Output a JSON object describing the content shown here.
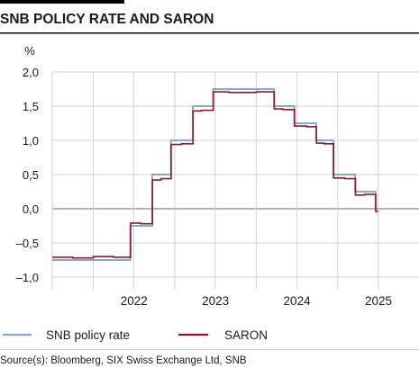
{
  "chart_data": {
    "type": "line",
    "title": "SNB POLICY RATE AND SARON",
    "ylabel": "%",
    "source": "Source(s): Bloomberg, SIX Swiss Exchange Ltd, SNB",
    "x_tick_labels": [
      "2022",
      "2023",
      "2024",
      "2025"
    ],
    "y_ticks": [
      2.0,
      1.5,
      1.0,
      0.5,
      0.0,
      -0.5,
      -1.0
    ],
    "y_tick_labels": [
      "2,0",
      "1,5",
      "1,0",
      "0,5",
      "0,0",
      "–0,5",
      "–1,0"
    ],
    "xlim": [
      "2021-07-01",
      "2025-12-31"
    ],
    "ylim": [
      -1.15,
      2.1
    ],
    "grid": true,
    "legend_position": "bottom",
    "colors": {
      "policy_rate": "#88a9cc",
      "saron": "#8c1a2c",
      "grid": "#d2d2d2",
      "zero_line": "#888888",
      "title_rule": "#000000"
    },
    "series": [
      {
        "name": "SNB policy rate",
        "step": true,
        "x": [
          "2021-07-01",
          "2022-06-16",
          "2022-09-22",
          "2022-12-15",
          "2023-03-23",
          "2023-06-22",
          "2024-03-21",
          "2024-06-20",
          "2024-09-26",
          "2024-12-12",
          "2025-03-20",
          "2025-06-19",
          "2025-07-01"
        ],
        "values": [
          -0.75,
          -0.25,
          0.5,
          1.0,
          1.5,
          1.75,
          1.5,
          1.25,
          1.0,
          0.5,
          0.25,
          0.0,
          0.0
        ]
      },
      {
        "name": "SARON",
        "step": true,
        "x": [
          "2021-07-01",
          "2021-10-01",
          "2022-01-01",
          "2022-04-01",
          "2022-06-17",
          "2022-08-01",
          "2022-09-23",
          "2022-11-01",
          "2022-12-16",
          "2023-02-01",
          "2023-03-24",
          "2023-05-01",
          "2023-06-23",
          "2023-09-01",
          "2024-01-01",
          "2024-03-22",
          "2024-05-01",
          "2024-06-21",
          "2024-08-15",
          "2024-09-27",
          "2024-11-01",
          "2024-12-13",
          "2025-02-01",
          "2025-03-21",
          "2025-05-01",
          "2025-06-20",
          "2025-07-01"
        ],
        "values": [
          -0.71,
          -0.72,
          -0.7,
          -0.71,
          -0.21,
          -0.22,
          0.42,
          0.44,
          0.94,
          0.95,
          1.43,
          1.44,
          1.71,
          1.7,
          1.71,
          1.46,
          1.45,
          1.21,
          1.2,
          0.96,
          0.95,
          0.45,
          0.44,
          0.2,
          0.21,
          -0.04,
          -0.04
        ]
      }
    ]
  }
}
